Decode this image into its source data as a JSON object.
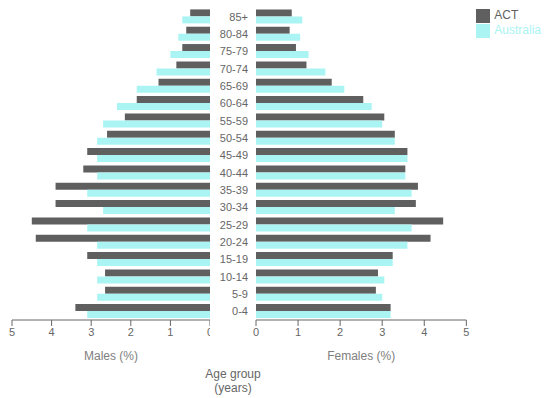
{
  "chart_data": [
    {
      "type": "bar",
      "orientation": "horizontal",
      "categories": [
        "0-4",
        "5-9",
        "10-14",
        "15-19",
        "20-24",
        "25-29",
        "30-34",
        "35-39",
        "40-44",
        "45-49",
        "50-54",
        "55-59",
        "60-64",
        "65-69",
        "70-74",
        "75-79",
        "80-84",
        "85+"
      ],
      "series": [
        {
          "name": "ACT",
          "color": "#5f5f5f",
          "values": [
            3.4,
            2.65,
            2.65,
            3.1,
            4.4,
            4.5,
            3.9,
            3.9,
            3.2,
            3.1,
            2.6,
            2.15,
            1.85,
            1.3,
            0.85,
            0.7,
            0.6,
            0.5
          ]
        },
        {
          "name": "Australia",
          "color": "#aaf4f4",
          "values": [
            3.1,
            2.85,
            2.85,
            2.85,
            2.85,
            3.1,
            2.7,
            3.1,
            2.85,
            2.85,
            2.85,
            2.7,
            2.35,
            1.85,
            1.35,
            1.0,
            0.8,
            0.7
          ]
        }
      ],
      "xlabel": "Males (%)",
      "xlim": [
        5,
        0
      ],
      "xticks": [
        0,
        1,
        2,
        3,
        4,
        5
      ],
      "tick_labels": "x"
    },
    {
      "type": "bar",
      "orientation": "horizontal",
      "categories": [
        "0-4",
        "5-9",
        "10-14",
        "15-19",
        "20-24",
        "25-29",
        "30-34",
        "35-39",
        "40-44",
        "45-49",
        "50-54",
        "55-59",
        "60-64",
        "65-69",
        "70-74",
        "75-79",
        "80-84",
        "85+"
      ],
      "series": [
        {
          "name": "ACT",
          "color": "#5f5f5f",
          "values": [
            3.2,
            2.85,
            2.9,
            3.25,
            4.15,
            4.45,
            3.8,
            3.85,
            3.55,
            3.6,
            3.3,
            3.05,
            2.55,
            1.8,
            1.2,
            0.95,
            0.8,
            0.85
          ]
        },
        {
          "name": "Australia",
          "color": "#aaf4f4",
          "values": [
            3.2,
            3.0,
            3.05,
            3.25,
            3.6,
            3.7,
            3.3,
            3.7,
            3.55,
            3.6,
            3.3,
            3.0,
            2.75,
            2.1,
            1.65,
            1.25,
            1.05,
            1.1
          ]
        }
      ],
      "xlabel": "Females (%)",
      "ylabel": "Age group\n(years)",
      "xlim": [
        0,
        5
      ],
      "xticks": [
        0,
        1,
        2,
        3,
        4,
        5
      ],
      "legend": "right"
    }
  ]
}
